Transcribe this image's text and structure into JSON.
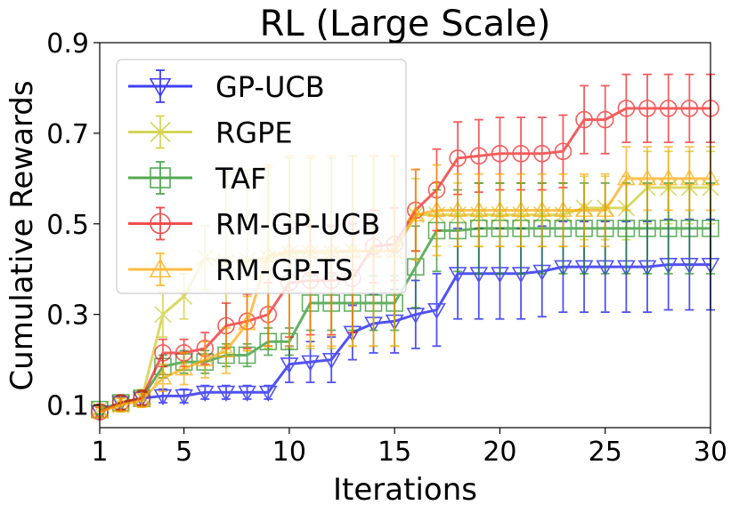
{
  "chart_data": {
    "type": "line",
    "title": "RL (Large Scale)",
    "xlabel": "Iterations",
    "ylabel": "Cumulative Rewards",
    "xlim": [
      1,
      30
    ],
    "ylim": [
      0.05,
      0.9
    ],
    "xticks": [
      1,
      5,
      10,
      15,
      20,
      25,
      30
    ],
    "xtick_labels": [
      "1",
      "5",
      "10",
      "15",
      "20",
      "25",
      "30"
    ],
    "yticks": [
      0.1,
      0.3,
      0.5,
      0.7,
      0.9
    ],
    "ytick_labels": [
      "0.1",
      "0.3",
      "0.5",
      "0.7",
      "0.9"
    ],
    "legend_position": "top-left",
    "grid": false,
    "x": [
      1,
      2,
      3,
      4,
      5,
      6,
      7,
      8,
      9,
      10,
      11,
      12,
      13,
      14,
      15,
      16,
      17,
      18,
      19,
      20,
      21,
      22,
      23,
      24,
      25,
      26,
      27,
      28,
      29,
      30
    ],
    "series": [
      {
        "name": "GP-UCB",
        "color": "#0000ee",
        "marker": "triangle-down",
        "values": [
          0.085,
          0.105,
          0.115,
          0.12,
          0.12,
          0.128,
          0.128,
          0.128,
          0.128,
          0.19,
          0.195,
          0.2,
          0.26,
          0.28,
          0.285,
          0.3,
          0.31,
          0.39,
          0.39,
          0.39,
          0.39,
          0.395,
          0.405,
          0.405,
          0.405,
          0.405,
          0.405,
          0.41,
          0.41,
          0.41
        ],
        "errors": [
          0.01,
          0.015,
          0.015,
          0.015,
          0.015,
          0.015,
          0.015,
          0.015,
          0.015,
          0.04,
          0.045,
          0.05,
          0.06,
          0.065,
          0.07,
          0.075,
          0.08,
          0.1,
          0.1,
          0.1,
          0.1,
          0.1,
          0.1,
          0.1,
          0.1,
          0.1,
          0.1,
          0.1,
          0.1,
          0.1
        ]
      },
      {
        "name": "RGPE",
        "color": "#c8c820",
        "marker": "x",
        "values": [
          0.09,
          0.1,
          0.115,
          0.3,
          0.34,
          0.425,
          0.415,
          0.42,
          0.425,
          0.435,
          0.435,
          0.435,
          0.44,
          0.44,
          0.44,
          0.52,
          0.52,
          0.52,
          0.52,
          0.52,
          0.52,
          0.52,
          0.52,
          0.535,
          0.535,
          0.535,
          0.58,
          0.58,
          0.58,
          0.58
        ],
        "errors": [
          0.01,
          0.015,
          0.02,
          0.05,
          0.05,
          0.07,
          0.2,
          0.2,
          0.2,
          0.21,
          0.21,
          0.21,
          0.21,
          0.21,
          0.21,
          0.08,
          0.07,
          0.07,
          0.07,
          0.07,
          0.07,
          0.07,
          0.07,
          0.07,
          0.07,
          0.07,
          0.08,
          0.08,
          0.08,
          0.08
        ]
      },
      {
        "name": "TAF",
        "color": "#1a8c1a",
        "marker": "square",
        "values": [
          0.09,
          0.105,
          0.115,
          0.185,
          0.195,
          0.195,
          0.21,
          0.21,
          0.24,
          0.24,
          0.325,
          0.325,
          0.325,
          0.325,
          0.325,
          0.405,
          0.485,
          0.485,
          0.49,
          0.49,
          0.49,
          0.49,
          0.49,
          0.49,
          0.49,
          0.49,
          0.49,
          0.49,
          0.49,
          0.49
        ],
        "errors": [
          0.01,
          0.015,
          0.015,
          0.025,
          0.025,
          0.025,
          0.025,
          0.025,
          0.03,
          0.03,
          0.06,
          0.06,
          0.06,
          0.06,
          0.06,
          0.09,
          0.09,
          0.09,
          0.1,
          0.1,
          0.1,
          0.1,
          0.1,
          0.1,
          0.1,
          0.1,
          0.1,
          0.1,
          0.1,
          0.1
        ]
      },
      {
        "name": "RM-GP-UCB",
        "color": "#ee1111",
        "marker": "circle",
        "values": [
          0.085,
          0.105,
          0.115,
          0.215,
          0.215,
          0.225,
          0.275,
          0.285,
          0.3,
          0.37,
          0.375,
          0.375,
          0.38,
          0.45,
          0.455,
          0.53,
          0.575,
          0.645,
          0.65,
          0.655,
          0.655,
          0.655,
          0.66,
          0.73,
          0.73,
          0.755,
          0.755,
          0.755,
          0.755,
          0.755
        ],
        "errors": [
          0.01,
          0.015,
          0.015,
          0.03,
          0.03,
          0.035,
          0.05,
          0.06,
          0.07,
          0.12,
          0.12,
          0.12,
          0.12,
          0.08,
          0.08,
          0.09,
          0.09,
          0.08,
          0.08,
          0.08,
          0.08,
          0.08,
          0.08,
          0.075,
          0.075,
          0.075,
          0.075,
          0.075,
          0.075,
          0.075
        ]
      },
      {
        "name": "RM-GP-TS",
        "color": "#ffa500",
        "marker": "triangle-up",
        "values": [
          0.085,
          0.1,
          0.11,
          0.16,
          0.18,
          0.2,
          0.22,
          0.28,
          0.43,
          0.44,
          0.44,
          0.44,
          0.44,
          0.44,
          0.44,
          0.52,
          0.53,
          0.53,
          0.53,
          0.53,
          0.53,
          0.53,
          0.53,
          0.53,
          0.53,
          0.6,
          0.6,
          0.6,
          0.6,
          0.6
        ],
        "errors": [
          0.01,
          0.015,
          0.015,
          0.03,
          0.035,
          0.04,
          0.05,
          0.06,
          0.2,
          0.21,
          0.21,
          0.21,
          0.21,
          0.21,
          0.21,
          0.1,
          0.1,
          0.08,
          0.08,
          0.08,
          0.08,
          0.08,
          0.08,
          0.08,
          0.08,
          0.07,
          0.07,
          0.07,
          0.07,
          0.07
        ]
      }
    ]
  }
}
